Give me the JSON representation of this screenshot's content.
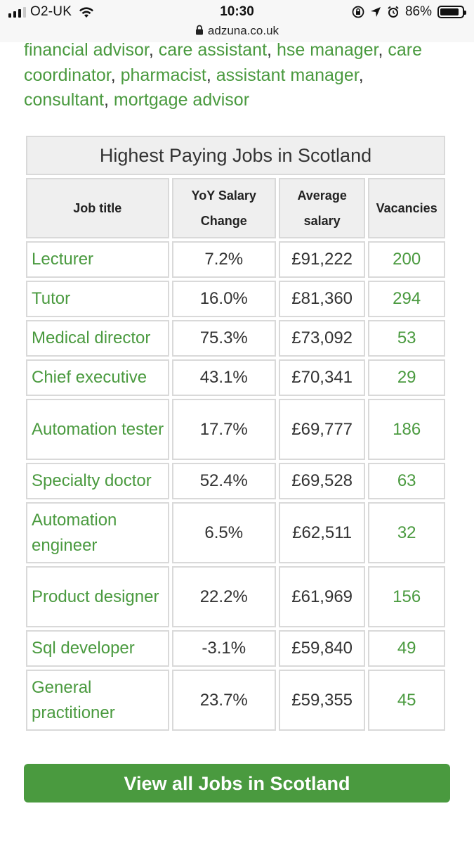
{
  "status_bar": {
    "carrier": "O2-UK",
    "time": "10:30",
    "battery": "86%",
    "battery_level": 0.86
  },
  "url_bar": {
    "domain": "adzuna.co.uk"
  },
  "related_jobs": [
    "financial advisor",
    "care assistant",
    "hse manager",
    "care coordinator",
    "pharmacist",
    "assistant manager",
    "consultant",
    "mortgage advisor"
  ],
  "table": {
    "title": "Highest Paying Jobs in Scotland",
    "headers": {
      "job_title": "Job title",
      "yoy_1": "YoY Salary",
      "yoy_2": "Change",
      "avg_1": "Average",
      "avg_2": "salary",
      "vacancies": "Vacancies"
    },
    "rows": [
      {
        "title": "Lecturer",
        "change": "7.2%",
        "salary": "£91,222",
        "vacancies": "200"
      },
      {
        "title": "Tutor",
        "change": "16.0%",
        "salary": "£81,360",
        "vacancies": "294"
      },
      {
        "title": "Medical director",
        "change": "75.3%",
        "salary": "£73,092",
        "vacancies": "53"
      },
      {
        "title": "Chief executive",
        "change": "43.1%",
        "salary": "£70,341",
        "vacancies": "29"
      },
      {
        "title": "Automation tester",
        "change": "17.7%",
        "salary": "£69,777",
        "vacancies": "186"
      },
      {
        "title": "Specialty doctor",
        "change": "52.4%",
        "salary": "£69,528",
        "vacancies": "63"
      },
      {
        "title": "Automation engineer",
        "change": "6.5%",
        "salary": "£62,511",
        "vacancies": "32"
      },
      {
        "title": "Product designer",
        "change": "22.2%",
        "salary": "£61,969",
        "vacancies": "156"
      },
      {
        "title": "Sql developer",
        "change": "-3.1%",
        "salary": "£59,840",
        "vacancies": "49"
      },
      {
        "title": "General practitioner",
        "change": "23.7%",
        "salary": "£59,355",
        "vacancies": "45"
      }
    ]
  },
  "cta": {
    "label": "View all Jobs in Scotland"
  },
  "colors": {
    "accent": "#4a9a3f",
    "header_bg": "#efefef",
    "border": "#d9d9d9"
  },
  "icons": {
    "signal": "signal-icon",
    "wifi": "wifi-icon",
    "lock": "lock-icon",
    "orientation_lock": "orientation-lock-icon",
    "location": "location-arrow-icon",
    "alarm": "alarm-icon",
    "battery": "battery-icon"
  }
}
